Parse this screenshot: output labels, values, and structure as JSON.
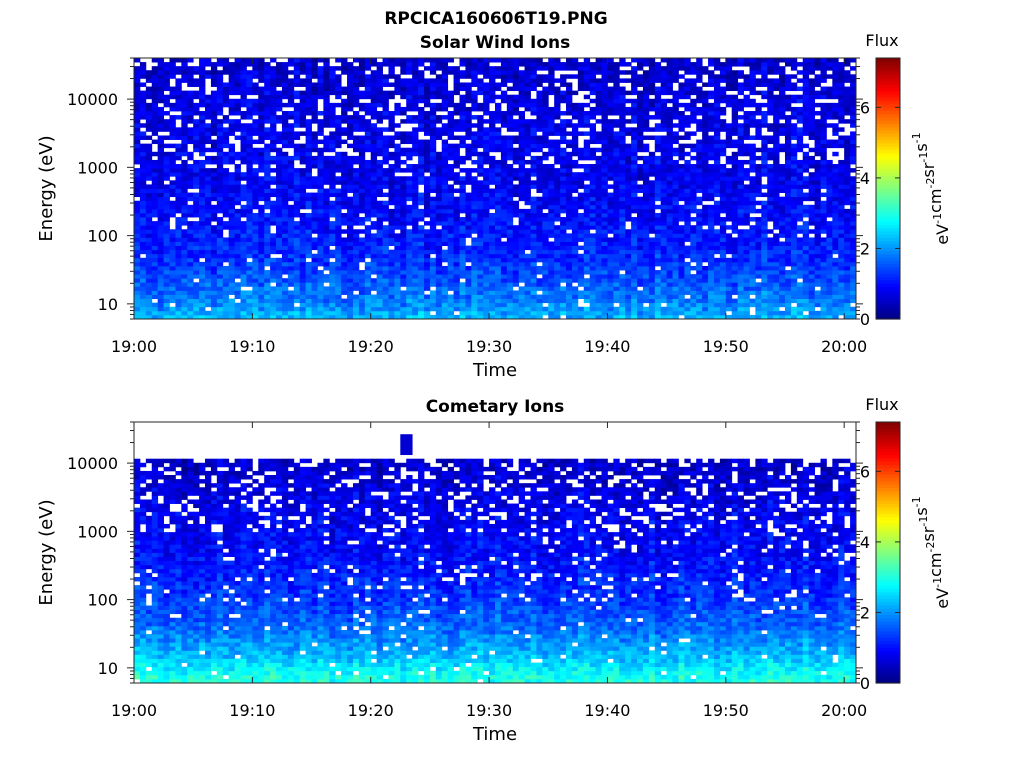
{
  "figure_title": "RPCICA160606T19.PNG",
  "chart_data": [
    {
      "type": "heatmap",
      "title": "Solar Wind Ions",
      "xlabel": "Time",
      "ylabel": "Energy (eV)",
      "x_ticks": [
        "19:00",
        "19:10",
        "19:20",
        "19:30",
        "19:40",
        "19:50",
        "20:00"
      ],
      "x_range": [
        "19:00",
        "20:01"
      ],
      "y_scale": "log",
      "y_ticks": [
        "10",
        "100",
        "1000",
        "10000"
      ],
      "y_range": [
        6,
        40000
      ],
      "colorbar": {
        "label_top": "Flux",
        "unit": "eV-1 cm-2 sr-1 s-1",
        "ticks": [
          "0",
          "2",
          "4",
          "6"
        ],
        "range": [
          0,
          7.4
        ]
      },
      "flux_profile": {
        "energy_eV": [
          7,
          10,
          15,
          25,
          40,
          70,
          120,
          250,
          600,
          1500,
          4000,
          10000,
          30000
        ],
        "typical_flux": [
          2.2,
          1.9,
          1.7,
          1.5,
          1.3,
          1.15,
          1.05,
          0.95,
          0.85,
          0.8,
          0.75,
          0.7,
          0.6
        ],
        "cutoff_eV": 40000
      }
    },
    {
      "type": "heatmap",
      "title": "Cometary Ions",
      "xlabel": "Time",
      "ylabel": "Energy (eV)",
      "x_ticks": [
        "19:00",
        "19:10",
        "19:20",
        "19:30",
        "19:40",
        "19:50",
        "20:00"
      ],
      "x_range": [
        "19:00",
        "20:01"
      ],
      "y_scale": "log",
      "y_ticks": [
        "10",
        "100",
        "1000",
        "10000"
      ],
      "y_range": [
        6,
        40000
      ],
      "colorbar": {
        "label_top": "Flux",
        "unit": "eV-1 cm-2 sr-1 s-1",
        "ticks": [
          "0",
          "2",
          "4",
          "6"
        ],
        "range": [
          0,
          7.4
        ]
      },
      "flux_profile": {
        "energy_eV": [
          7,
          10,
          15,
          25,
          40,
          70,
          120,
          250,
          600,
          1500,
          4000,
          10000
        ],
        "typical_flux": [
          3.0,
          2.7,
          2.3,
          2.0,
          1.7,
          1.5,
          1.3,
          1.1,
          0.95,
          0.85,
          0.7,
          0.55
        ],
        "cutoff_eV": 11000,
        "spike": {
          "time": "19:23",
          "energy_eV": [
            13000,
            27000
          ]
        }
      }
    }
  ]
}
